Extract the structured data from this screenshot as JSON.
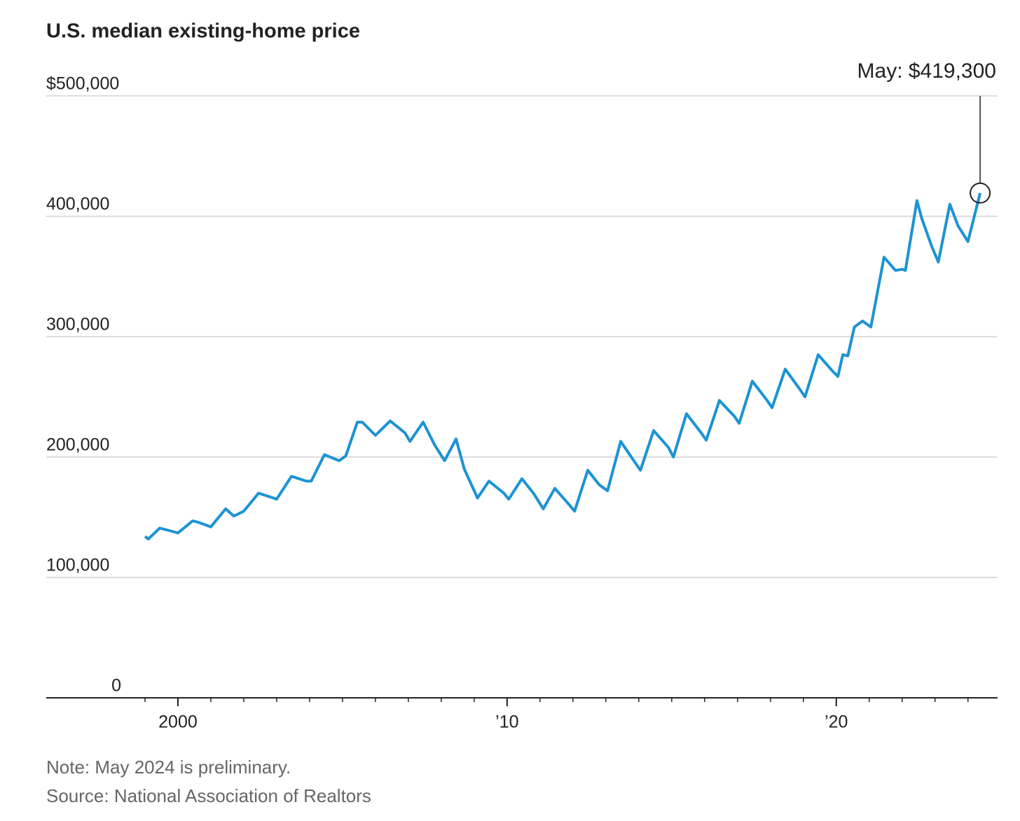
{
  "chart_data": {
    "type": "line",
    "title": "U.S. median existing-home price",
    "annotation": "May: $419,300",
    "note": "Note: May 2024 is preliminary.",
    "source": "Source: National Association of Realtors",
    "xlim": [
      1996,
      2024.9
    ],
    "xticks": [
      {
        "value": 2000,
        "label": "2000"
      },
      {
        "value": 2010,
        "label": "’10"
      },
      {
        "value": 2020,
        "label": "’20"
      }
    ],
    "xminorticks": [
      1999,
      2000,
      2001,
      2002,
      2003,
      2004,
      2005,
      2006,
      2007,
      2008,
      2009,
      2010,
      2011,
      2012,
      2013,
      2014,
      2015,
      2016,
      2017,
      2018,
      2019,
      2020,
      2021,
      2022,
      2023,
      2024
    ],
    "ylim": [
      0,
      500000
    ],
    "yticks": [
      0,
      {
        "value": 100000,
        "label": "100,000"
      },
      {
        "value": 200000,
        "label": "200,000"
      },
      {
        "value": 300000,
        "label": "300,000"
      },
      {
        "value": 400000,
        "label": "400,000"
      },
      {
        "value": 500000,
        "label": "$500,000"
      }
    ],
    "grid": true,
    "x": [
      1999.0,
      1999.1,
      1999.45,
      2000.0,
      2000.45,
      2000.6,
      2001.0,
      2001.45,
      2001.7,
      2002.0,
      2002.45,
      2002.9,
      2003.0,
      2003.45,
      2003.9,
      2004.05,
      2004.45,
      2004.9,
      2005.1,
      2005.45,
      2005.6,
      2006.0,
      2006.45,
      2006.9,
      2007.05,
      2007.45,
      2007.8,
      2008.1,
      2008.45,
      2008.7,
      2009.1,
      2009.45,
      2009.9,
      2010.05,
      2010.45,
      2010.8,
      2011.1,
      2011.45,
      2011.9,
      2012.05,
      2012.45,
      2012.8,
      2013.05,
      2013.45,
      2013.8,
      2014.05,
      2014.45,
      2014.9,
      2015.05,
      2015.45,
      2015.9,
      2016.05,
      2016.45,
      2016.9,
      2017.05,
      2017.45,
      2017.9,
      2018.05,
      2018.45,
      2018.9,
      2019.05,
      2019.45,
      2019.9,
      2020.05,
      2020.2,
      2020.35,
      2020.55,
      2020.8,
      2021.05,
      2021.45,
      2021.8,
      2022.0,
      2022.1,
      2022.45,
      2022.6,
      2022.9,
      2023.1,
      2023.45,
      2023.7,
      2024.0,
      2024.37
    ],
    "series": [
      {
        "name": "Median existing-home price",
        "color": "#1c93d4",
        "values": [
          134000,
          132000,
          141000,
          137000,
          147000,
          146000,
          142000,
          157000,
          151000,
          155000,
          170000,
          166000,
          165000,
          184000,
          180000,
          180000,
          202000,
          197000,
          201000,
          229000,
          229000,
          218000,
          230000,
          220000,
          213000,
          229000,
          210000,
          197000,
          215000,
          190000,
          166000,
          180000,
          170000,
          165000,
          182000,
          170000,
          157000,
          174000,
          160000,
          155000,
          189000,
          177000,
          172000,
          213000,
          199000,
          189000,
          222000,
          208000,
          200000,
          236000,
          220000,
          214000,
          247000,
          234000,
          228000,
          263000,
          247000,
          241000,
          273000,
          256000,
          250000,
          285000,
          271000,
          267000,
          285000,
          284000,
          308000,
          313000,
          308000,
          366000,
          355000,
          356000,
          355000,
          413000,
          398000,
          375000,
          362000,
          410000,
          392000,
          379000,
          419300
        ]
      }
    ]
  }
}
